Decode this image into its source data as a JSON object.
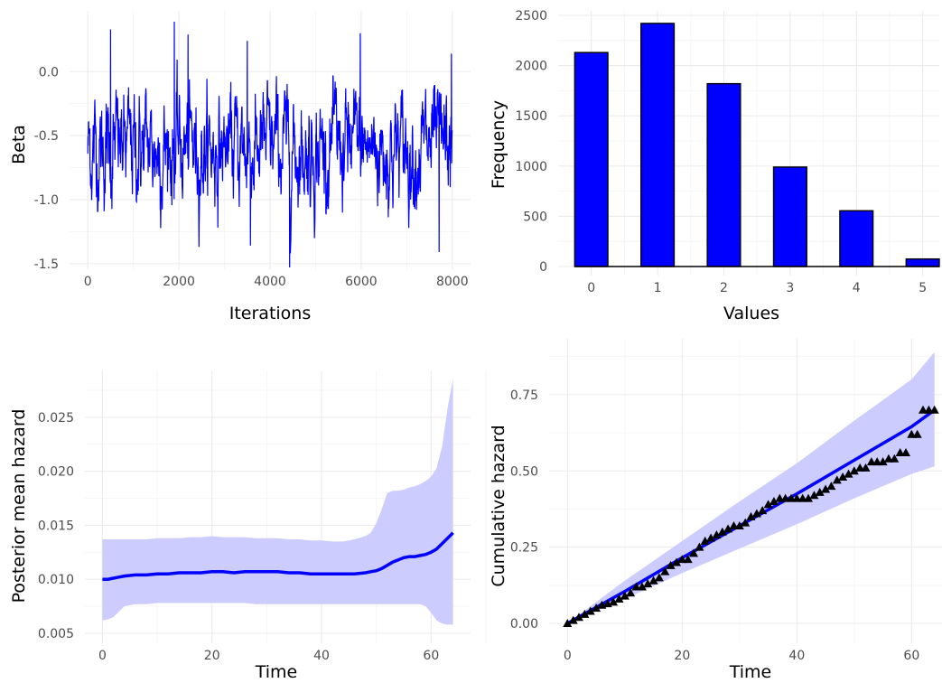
{
  "colors": {
    "series": "#0000ff",
    "ribbon": "#ccccff",
    "bar_outline": "#000000",
    "points": "#000000"
  },
  "chart_data": [
    {
      "type": "line",
      "xlabel": "Iterations",
      "ylabel": "Beta",
      "xlim": [
        0,
        8000
      ],
      "ylim": [
        -1.5,
        0.3
      ],
      "x_ticks": [
        0,
        2000,
        4000,
        6000,
        8000
      ],
      "x_tick_labels": [
        "0",
        "2000",
        "4000",
        "6000",
        "8000"
      ],
      "y_ticks": [
        -1.5,
        -1.0,
        -0.5,
        0.0
      ],
      "y_tick_labels": [
        "-1.5",
        "-1.0",
        "-0.5",
        "0.0"
      ],
      "grid": true,
      "series": [
        {
          "n": 8000,
          "mean": -0.6,
          "sd": 0.22,
          "min": -1.53,
          "max": 0.39,
          "notable_points": [
            {
              "x": 500,
              "y": 0.33
            },
            {
              "x": 1900,
              "y": 0.39
            },
            {
              "x": 2200,
              "y": 0.29
            },
            {
              "x": 3500,
              "y": 0.24
            },
            {
              "x": 3570,
              "y": -1.36
            },
            {
              "x": 4430,
              "y": -1.53
            },
            {
              "x": 5980,
              "y": 0.3
            },
            {
              "x": 7710,
              "y": -1.41
            },
            {
              "x": 7980,
              "y": 0.14
            }
          ]
        }
      ]
    },
    {
      "type": "bar",
      "xlabel": "Values",
      "ylabel": "Frequency",
      "categories": [
        "0",
        "1",
        "2",
        "3",
        "4",
        "5"
      ],
      "values": [
        2130,
        2420,
        1820,
        990,
        555,
        75
      ],
      "ylim": [
        0,
        2500
      ],
      "y_ticks": [
        0,
        500,
        1000,
        1500,
        2000,
        2500
      ],
      "y_tick_labels": [
        "0",
        "500",
        "1000",
        "1500",
        "2000",
        "2500"
      ],
      "grid": true
    },
    {
      "type": "area",
      "xlabel": "Time",
      "ylabel": "Posterior mean hazard",
      "xlim": [
        0,
        64
      ],
      "ylim": [
        0.005,
        0.028
      ],
      "x_ticks": [
        0,
        20,
        40,
        60
      ],
      "x_tick_labels": [
        "0",
        "20",
        "40",
        "60"
      ],
      "y_ticks": [
        0.005,
        0.01,
        0.015,
        0.02,
        0.025
      ],
      "y_tick_labels": [
        "0.005",
        "0.010",
        "0.015",
        "0.020",
        "0.025"
      ],
      "grid": true,
      "series": [
        {
          "x": [
            0,
            1,
            2,
            3,
            4,
            6,
            8,
            10,
            12,
            14,
            16,
            18,
            20,
            22,
            24,
            26,
            28,
            30,
            32,
            34,
            36,
            38,
            40,
            42,
            44,
            46,
            48,
            49,
            50,
            51,
            52,
            53,
            54,
            55,
            56,
            57,
            58,
            59,
            60,
            61,
            62,
            63,
            64
          ],
          "mean": [
            0.01,
            0.01,
            0.0101,
            0.0102,
            0.0103,
            0.0104,
            0.0104,
            0.0105,
            0.0105,
            0.0106,
            0.0106,
            0.0106,
            0.0107,
            0.0107,
            0.0106,
            0.0107,
            0.0107,
            0.0107,
            0.0107,
            0.0106,
            0.0106,
            0.0105,
            0.0105,
            0.0105,
            0.0105,
            0.0105,
            0.0106,
            0.0107,
            0.0108,
            0.011,
            0.0113,
            0.0116,
            0.0118,
            0.012,
            0.0121,
            0.0121,
            0.0122,
            0.0123,
            0.0125,
            0.0128,
            0.0133,
            0.0138,
            0.0143
          ],
          "lower": [
            0.0062,
            0.0063,
            0.0065,
            0.007,
            0.0075,
            0.0077,
            0.0077,
            0.0078,
            0.0078,
            0.0078,
            0.0078,
            0.0078,
            0.0078,
            0.0078,
            0.0078,
            0.0078,
            0.0077,
            0.0077,
            0.0077,
            0.0077,
            0.0077,
            0.0077,
            0.0077,
            0.0077,
            0.0077,
            0.0077,
            0.0077,
            0.0077,
            0.0077,
            0.0077,
            0.0077,
            0.0077,
            0.0077,
            0.0077,
            0.0077,
            0.0077,
            0.0077,
            0.0075,
            0.0069,
            0.0062,
            0.0059,
            0.0058,
            0.0058
          ],
          "upper": [
            0.0137,
            0.0137,
            0.0137,
            0.0137,
            0.0137,
            0.0137,
            0.0137,
            0.0138,
            0.0138,
            0.0138,
            0.0139,
            0.0139,
            0.014,
            0.0139,
            0.0139,
            0.0139,
            0.0138,
            0.0138,
            0.0138,
            0.0137,
            0.0137,
            0.0136,
            0.0136,
            0.0135,
            0.0135,
            0.0137,
            0.014,
            0.0143,
            0.0152,
            0.0165,
            0.018,
            0.0182,
            0.0182,
            0.0183,
            0.0185,
            0.0186,
            0.0188,
            0.0191,
            0.0195,
            0.0203,
            0.0223,
            0.0258,
            0.0286
          ]
        }
      ]
    },
    {
      "type": "line",
      "xlabel": "Time",
      "ylabel": "Cumulative hazard",
      "xlim": [
        0,
        65
      ],
      "ylim": [
        0,
        0.88
      ],
      "x_ticks": [
        0,
        20,
        40,
        60
      ],
      "x_tick_labels": [
        "0",
        "20",
        "40",
        "60"
      ],
      "y_ticks": [
        0,
        0.25,
        0.5,
        0.75
      ],
      "y_tick_labels": [
        "0.00",
        "0.25",
        "0.50",
        "0.75"
      ],
      "grid": true,
      "series": [
        {
          "x": [
            0,
            10,
            20,
            30,
            40,
            50,
            60,
            64
          ],
          "mean": [
            0,
            0.105,
            0.215,
            0.32,
            0.425,
            0.535,
            0.645,
            0.7
          ],
          "lower": [
            0,
            0.08,
            0.165,
            0.245,
            0.325,
            0.41,
            0.49,
            0.515
          ],
          "upper": [
            0,
            0.14,
            0.27,
            0.4,
            0.525,
            0.665,
            0.8,
            0.89
          ]
        }
      ],
      "points": {
        "x": [
          0,
          1,
          2,
          3,
          4,
          5,
          6,
          7,
          8,
          9,
          10,
          11,
          12,
          13,
          14,
          15,
          16,
          17,
          18,
          19,
          20,
          21,
          22,
          23,
          24,
          25,
          26,
          27,
          28,
          29,
          30,
          31,
          32,
          33,
          34,
          35,
          36,
          37,
          38,
          39,
          40,
          41,
          42,
          43,
          44,
          45,
          46,
          47,
          48,
          49,
          50,
          51,
          52,
          53,
          54,
          55,
          56,
          57,
          58,
          59,
          60,
          61,
          62,
          63,
          64
        ],
        "y": [
          0.0,
          0.01,
          0.02,
          0.03,
          0.04,
          0.05,
          0.06,
          0.065,
          0.07,
          0.08,
          0.09,
          0.1,
          0.12,
          0.12,
          0.13,
          0.14,
          0.15,
          0.17,
          0.19,
          0.2,
          0.21,
          0.21,
          0.23,
          0.25,
          0.27,
          0.28,
          0.29,
          0.3,
          0.31,
          0.32,
          0.32,
          0.33,
          0.35,
          0.36,
          0.37,
          0.39,
          0.4,
          0.41,
          0.41,
          0.41,
          0.41,
          0.41,
          0.41,
          0.42,
          0.43,
          0.44,
          0.45,
          0.47,
          0.48,
          0.49,
          0.5,
          0.51,
          0.51,
          0.53,
          0.53,
          0.53,
          0.54,
          0.54,
          0.56,
          0.56,
          0.62,
          0.62,
          0.7,
          0.7,
          0.7
        ]
      }
    }
  ]
}
